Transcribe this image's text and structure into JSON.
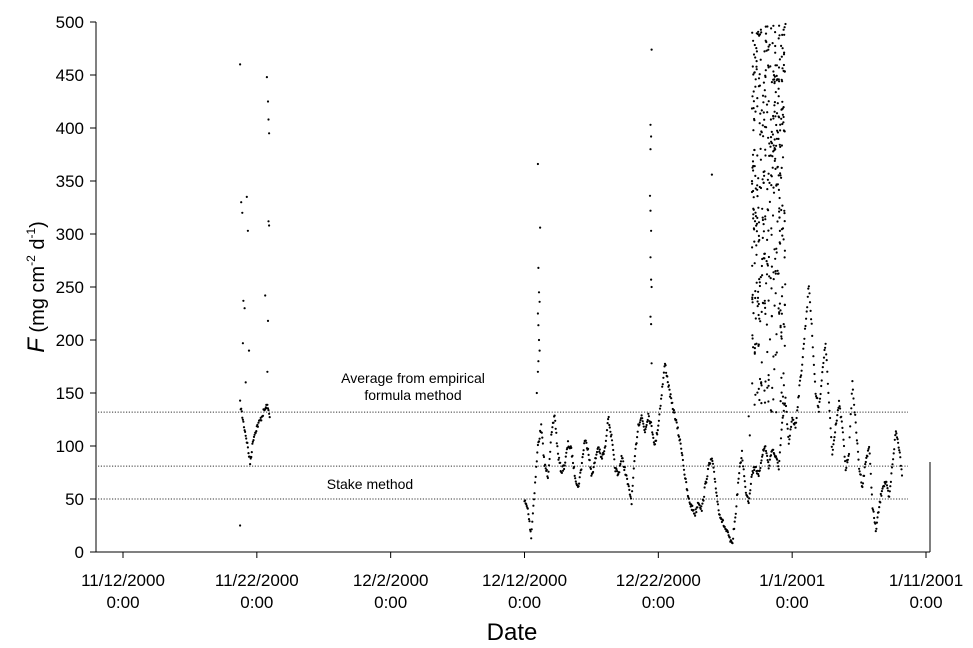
{
  "chart_data": {
    "type": "scatter",
    "xlabel": "Date",
    "ylabel": {
      "italic": "F",
      "rest": " (mg cm",
      "sup1": "-2",
      "mid": " d",
      "sup2": "-1",
      "end": ")"
    },
    "ylim": [
      0,
      500
    ],
    "yticks": [
      0,
      50,
      100,
      150,
      200,
      250,
      300,
      350,
      400,
      450,
      500
    ],
    "xlim": [
      "2000-11-12",
      "2001-01-11"
    ],
    "xticks": [
      {
        "date": "11/12/2000",
        "time": "0:00"
      },
      {
        "date": "11/22/2000",
        "time": "0:00"
      },
      {
        "date": "12/2/2000",
        "time": "0:00"
      },
      {
        "date": "12/12/2000",
        "time": "0:00"
      },
      {
        "date": "12/22/2000",
        "time": "0:00"
      },
      {
        "date": "1/1/2001",
        "time": "0:00"
      },
      {
        "date": "1/11/2001",
        "time": "0:00"
      }
    ],
    "reference_lines": [
      {
        "y": 132,
        "label_line1": "Average from empirical",
        "label_line2": "formula method"
      },
      {
        "y": 81,
        "label": ""
      },
      {
        "y": 50,
        "label": "Stake method"
      }
    ],
    "marker_color": "#000000",
    "series_trend": [
      {
        "name": "",
        "points": [
          [
            "2000-11-20 18:00",
            140
          ],
          [
            "2000-11-21 00:00",
            122
          ],
          [
            "2000-11-21 06:00",
            105
          ],
          [
            "2000-11-21 12:00",
            84
          ],
          [
            "2000-11-21 18:00",
            108
          ],
          [
            "2000-11-22 00:00",
            118
          ],
          [
            "2000-11-22 06:00",
            124
          ],
          [
            "2000-11-22 12:00",
            132
          ],
          [
            "2000-11-22 18:00",
            138
          ],
          [
            "2000-11-23 00:00",
            128
          ]
        ]
      },
      {
        "name": "",
        "points": [
          [
            "2000-12-12 00:00",
            48
          ],
          [
            "2000-12-12 06:00",
            40
          ],
          [
            "2000-12-12 12:00",
            15
          ],
          [
            "2000-12-12 18:00",
            58
          ],
          [
            "2000-12-13 00:00",
            100
          ],
          [
            "2000-12-13 06:00",
            118
          ],
          [
            "2000-12-13 12:00",
            82
          ],
          [
            "2000-12-13 18:00",
            72
          ],
          [
            "2000-12-14 00:00",
            108
          ],
          [
            "2000-12-14 06:00",
            130
          ],
          [
            "2000-12-14 12:00",
            92
          ],
          [
            "2000-12-14 18:00",
            76
          ],
          [
            "2000-12-15 00:00",
            82
          ],
          [
            "2000-12-15 06:00",
            102
          ],
          [
            "2000-12-15 12:00",
            96
          ],
          [
            "2000-12-15 18:00",
            74
          ],
          [
            "2000-12-16 00:00",
            60
          ],
          [
            "2000-12-16 06:00",
            80
          ],
          [
            "2000-12-16 12:00",
            106
          ],
          [
            "2000-12-16 18:00",
            98
          ],
          [
            "2000-12-17 00:00",
            72
          ],
          [
            "2000-12-17 06:00",
            84
          ],
          [
            "2000-12-17 12:00",
            100
          ],
          [
            "2000-12-17 18:00",
            88
          ],
          [
            "2000-12-18 00:00",
            96
          ],
          [
            "2000-12-18 06:00",
            128
          ],
          [
            "2000-12-18 12:00",
            108
          ],
          [
            "2000-12-18 18:00",
            80
          ],
          [
            "2000-12-19 00:00",
            72
          ],
          [
            "2000-12-19 06:00",
            90
          ],
          [
            "2000-12-19 12:00",
            78
          ],
          [
            "2000-12-19 18:00",
            62
          ],
          [
            "2000-12-20 00:00",
            48
          ],
          [
            "2000-12-20 06:00",
            90
          ],
          [
            "2000-12-20 12:00",
            120
          ],
          [
            "2000-12-20 18:00",
            128
          ],
          [
            "2000-12-21 00:00",
            114
          ],
          [
            "2000-12-21 06:00",
            130
          ],
          [
            "2000-12-21 12:00",
            118
          ],
          [
            "2000-12-21 18:00",
            100
          ],
          [
            "2000-12-22 00:00",
            120
          ],
          [
            "2000-12-22 06:00",
            150
          ],
          [
            "2000-12-22 12:00",
            178
          ],
          [
            "2000-12-22 18:00",
            158
          ],
          [
            "2000-12-23 00:00",
            140
          ],
          [
            "2000-12-23 06:00",
            128
          ],
          [
            "2000-12-23 12:00",
            112
          ],
          [
            "2000-12-23 18:00",
            96
          ],
          [
            "2000-12-24 00:00",
            70
          ],
          [
            "2000-12-24 06:00",
            50
          ],
          [
            "2000-12-24 12:00",
            42
          ],
          [
            "2000-12-24 18:00",
            36
          ],
          [
            "2000-12-25 00:00",
            48
          ],
          [
            "2000-12-25 06:00",
            40
          ],
          [
            "2000-12-25 12:00",
            62
          ],
          [
            "2000-12-25 18:00",
            80
          ],
          [
            "2000-12-26 00:00",
            88
          ],
          [
            "2000-12-26 06:00",
            66
          ],
          [
            "2000-12-26 12:00",
            40
          ],
          [
            "2000-12-26 18:00",
            30
          ],
          [
            "2000-12-27 00:00",
            22
          ],
          [
            "2000-12-27 06:00",
            15
          ],
          [
            "2000-12-27 12:00",
            6
          ],
          [
            "2000-12-27 18:00",
            32
          ],
          [
            "2000-12-28 00:00",
            70
          ],
          [
            "2000-12-28 06:00",
            94
          ],
          [
            "2000-12-28 12:00",
            60
          ],
          [
            "2000-12-28 18:00",
            48
          ],
          [
            "2000-12-29 00:00",
            74
          ],
          [
            "2000-12-29 06:00",
            82
          ],
          [
            "2000-12-29 12:00",
            70
          ],
          [
            "2000-12-29 18:00",
            92
          ],
          [
            "2000-12-30 00:00",
            100
          ],
          [
            "2000-12-30 06:00",
            80
          ],
          [
            "2000-12-30 12:00",
            98
          ],
          [
            "2000-12-30 18:00",
            90
          ],
          [
            "2000-12-31 00:00",
            80
          ],
          [
            "2000-12-31 06:00",
            120
          ],
          [
            "2000-12-31 12:00",
            145
          ],
          [
            "2000-12-31 18:00",
            100
          ],
          [
            "2001-01-01 00:00",
            128
          ],
          [
            "2001-01-01 06:00",
            118
          ],
          [
            "2001-01-01 12:00",
            150
          ],
          [
            "2001-01-01 18:00",
            178
          ],
          [
            "2001-01-02 00:00",
            215
          ],
          [
            "2001-01-02 06:00",
            252
          ],
          [
            "2001-01-02 12:00",
            205
          ],
          [
            "2001-01-02 18:00",
            150
          ],
          [
            "2001-01-03 00:00",
            135
          ],
          [
            "2001-01-03 06:00",
            168
          ],
          [
            "2001-01-03 12:00",
            198
          ],
          [
            "2001-01-03 18:00",
            140
          ],
          [
            "2001-01-04 00:00",
            92
          ],
          [
            "2001-01-04 06:00",
            120
          ],
          [
            "2001-01-04 12:00",
            140
          ],
          [
            "2001-01-04 18:00",
            118
          ],
          [
            "2001-01-05 00:00",
            78
          ],
          [
            "2001-01-05 06:00",
            95
          ],
          [
            "2001-01-05 12:00",
            160
          ],
          [
            "2001-01-05 18:00",
            120
          ],
          [
            "2001-01-06 00:00",
            80
          ],
          [
            "2001-01-06 06:00",
            62
          ],
          [
            "2001-01-06 12:00",
            86
          ],
          [
            "2001-01-06 18:00",
            100
          ],
          [
            "2001-01-07 00:00",
            44
          ],
          [
            "2001-01-07 06:00",
            20
          ],
          [
            "2001-01-07 12:00",
            42
          ],
          [
            "2001-01-07 18:00",
            62
          ],
          [
            "2001-01-08 00:00",
            66
          ],
          [
            "2001-01-08 06:00",
            50
          ],
          [
            "2001-01-08 12:00",
            84
          ],
          [
            "2001-01-08 18:00",
            114
          ],
          [
            "2001-01-09 00:00",
            98
          ],
          [
            "2001-01-09 06:00",
            70
          ]
        ]
      }
    ],
    "outlier_points": [
      [
        "2000-11-20 18:00",
        460
      ],
      [
        "2000-11-20 20:00",
        330
      ],
      [
        "2000-11-20 22:00",
        320
      ],
      [
        "2000-11-20 18:00",
        25
      ],
      [
        "2000-11-21 00:00",
        237
      ],
      [
        "2000-11-21 02:00",
        230
      ],
      [
        "2000-11-20 23:00",
        197
      ],
      [
        "2000-11-21 06:00",
        335
      ],
      [
        "2000-11-21 08:00",
        303
      ],
      [
        "2000-11-21 10:00",
        190
      ],
      [
        "2000-11-21 04:00",
        160
      ],
      [
        "2000-11-22 18:00",
        448
      ],
      [
        "2000-11-22 20:00",
        425
      ],
      [
        "2000-11-22 21:00",
        408
      ],
      [
        "2000-11-22 22:00",
        395
      ],
      [
        "2000-11-22 21:00",
        312
      ],
      [
        "2000-11-22 22:00",
        308
      ],
      [
        "2000-11-22 15:00",
        242
      ],
      [
        "2000-11-22 20:00",
        218
      ],
      [
        "2000-11-22 19:00",
        170
      ],
      [
        "2000-12-13 00:00",
        366
      ],
      [
        "2000-12-13 04:00",
        306
      ],
      [
        "2000-12-13 01:00",
        268
      ],
      [
        "2000-12-13 02:00",
        245
      ],
      [
        "2000-12-13 03:00",
        236
      ],
      [
        "2000-12-13 00:00",
        225
      ],
      [
        "2000-12-13 01:00",
        214
      ],
      [
        "2000-12-13 02:00",
        200
      ],
      [
        "2000-12-13 03:00",
        190
      ],
      [
        "2000-12-13 01:00",
        180
      ],
      [
        "2000-12-13 00:00",
        170
      ],
      [
        "2000-12-12 22:00",
        150
      ],
      [
        "2000-12-21 12:00",
        474
      ],
      [
        "2000-12-21 10:00",
        403
      ],
      [
        "2000-12-21 11:00",
        392
      ],
      [
        "2000-12-21 10:00",
        380
      ],
      [
        "2000-12-21 09:00",
        336
      ],
      [
        "2000-12-21 10:00",
        322
      ],
      [
        "2000-12-21 11:00",
        303
      ],
      [
        "2000-12-21 10:00",
        278
      ],
      [
        "2000-12-21 11:00",
        257
      ],
      [
        "2000-12-21 12:00",
        250
      ],
      [
        "2000-12-21 10:00",
        222
      ],
      [
        "2000-12-21 11:00",
        215
      ],
      [
        "2000-12-21 12:00",
        178
      ],
      [
        "2000-12-26 00:00",
        356
      ],
      [
        "2000-12-28 18:00",
        128
      ],
      [
        "2000-12-28 20:00",
        110
      ]
    ],
    "cloud_region": {
      "x_start": "2000-12-29 00:00",
      "x_end": "2000-12-31 12:00",
      "y_min": 130,
      "y_max": 500
    }
  }
}
